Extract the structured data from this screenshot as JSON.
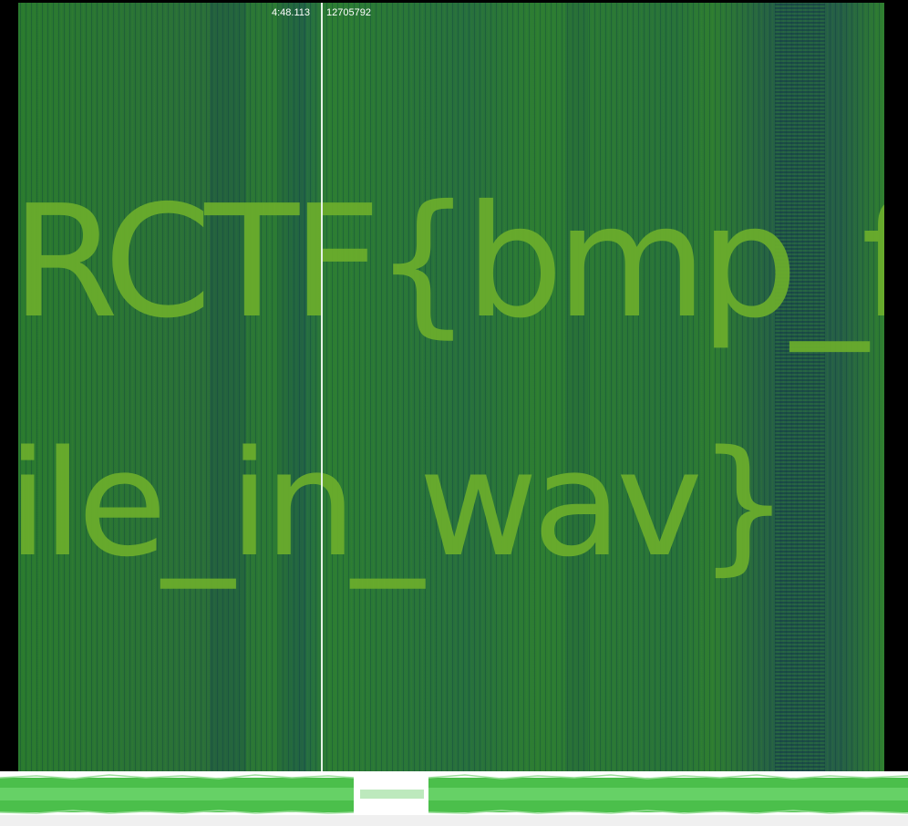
{
  "cursor": {
    "time": "4:48.113",
    "sample": "12705792"
  },
  "spectrogram": {
    "hidden_text_line1": "RCTF{bmp_f",
    "hidden_text_line2": "ile_in_wav}",
    "colors": {
      "base": "#2e7d33",
      "text": "#6cae2c",
      "waveform": "#5fd05f",
      "waveform_dark": "#3a9a3a"
    }
  }
}
